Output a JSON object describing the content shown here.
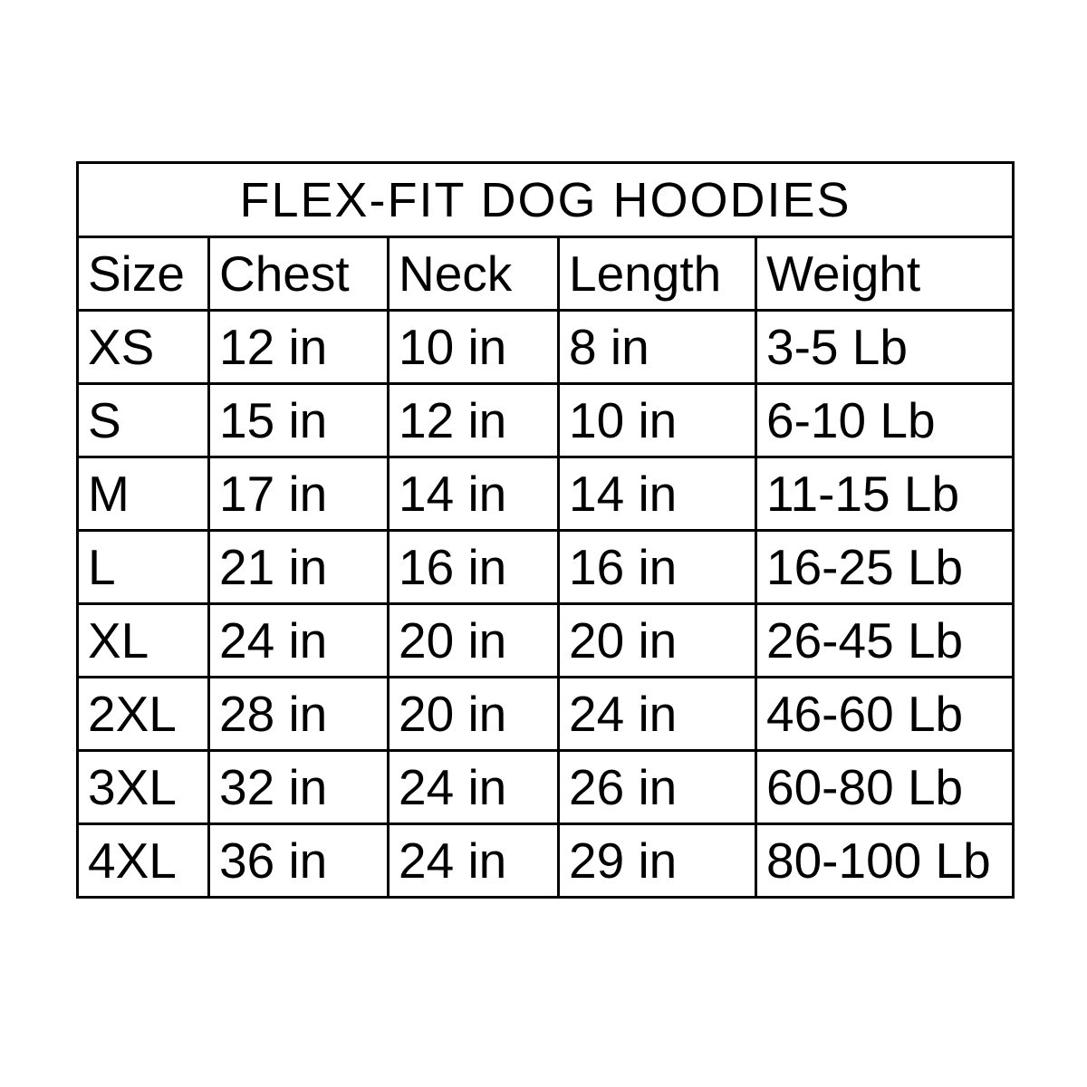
{
  "title": "FLEX-FIT DOG HOODIES",
  "headers": [
    "Size",
    "Chest",
    "Neck",
    "Length",
    "Weight"
  ],
  "rows": [
    [
      "XS",
      "12 in",
      "10 in",
      "8 in",
      "3-5 Lb"
    ],
    [
      "S",
      "15 in",
      "12 in",
      "10 in",
      "6-10 Lb"
    ],
    [
      "M",
      "17 in",
      "14 in",
      "14 in",
      "11-15 Lb"
    ],
    [
      "L",
      "21 in",
      "16 in",
      "16 in",
      "16-25 Lb"
    ],
    [
      "XL",
      "24 in",
      "20 in",
      "20 in",
      "26-45 Lb"
    ],
    [
      "2XL",
      "28 in",
      "20 in",
      "24 in",
      "46-60 Lb"
    ],
    [
      "3XL",
      "32 in",
      "24 in",
      "26 in",
      "60-80 Lb"
    ],
    [
      "4XL",
      "36 in",
      "24 in",
      "29 in",
      "80-100 Lb"
    ]
  ]
}
